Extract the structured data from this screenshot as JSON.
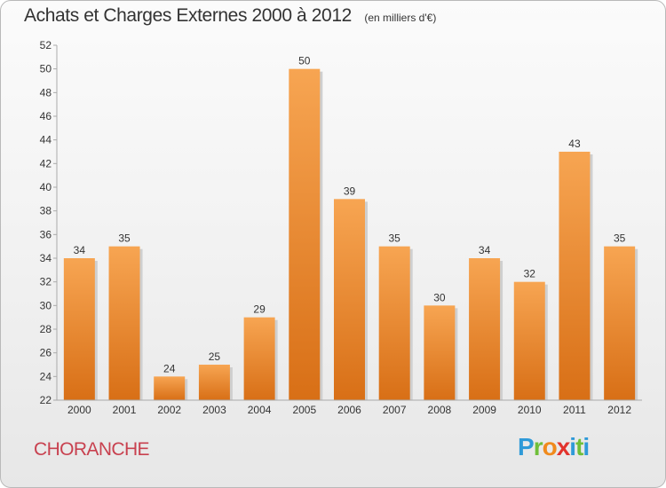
{
  "chart_data": {
    "type": "bar",
    "title": "Achats et Charges Externes 2000 à 2012",
    "subtitle": "(en milliers d'€)",
    "categories": [
      "2000",
      "2001",
      "2002",
      "2003",
      "2004",
      "2005",
      "2006",
      "2007",
      "2008",
      "2009",
      "2010",
      "2011",
      "2012"
    ],
    "values": [
      34,
      35,
      24,
      25,
      29,
      50,
      39,
      35,
      30,
      34,
      32,
      43,
      35
    ],
    "ylim": [
      22,
      52
    ],
    "yticks": [
      22,
      24,
      26,
      28,
      30,
      32,
      34,
      36,
      38,
      40,
      42,
      44,
      46,
      48,
      50,
      52
    ],
    "grid": false,
    "bar_color_top": "#f7a552",
    "bar_color_bottom": "#d86f16"
  },
  "footer": {
    "commune": "CHORANCHE",
    "logo_letters": [
      "P",
      "r",
      "o",
      "x",
      "i",
      "t",
      "i"
    ]
  }
}
